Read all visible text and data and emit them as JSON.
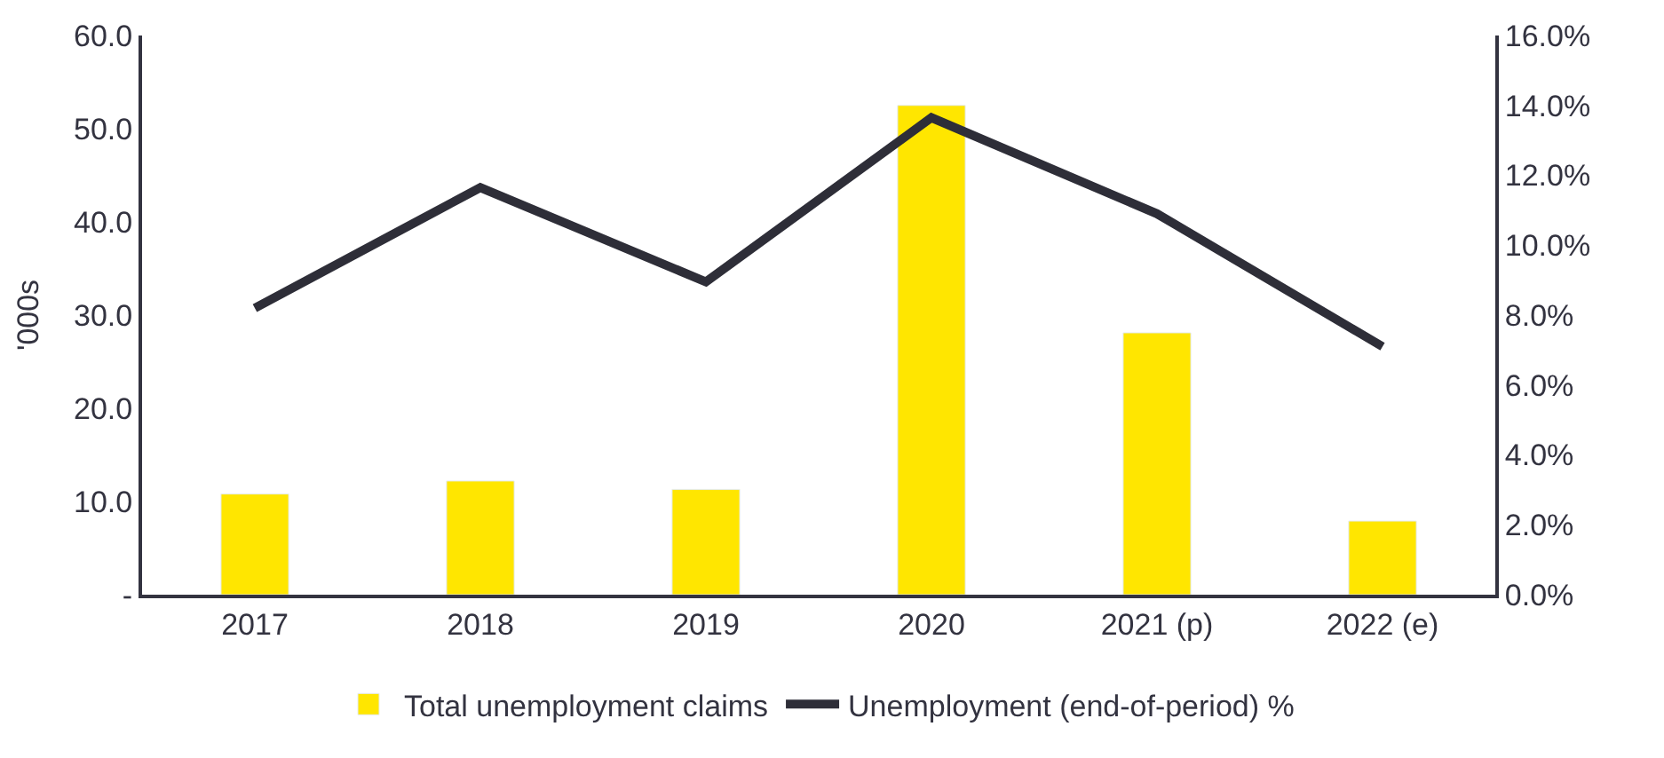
{
  "chart_data": {
    "type": "bar",
    "ylabel": "'000s",
    "categories": [
      "2017",
      "2018",
      "2019",
      "2020",
      "2021 (p)",
      "2022 (e)"
    ],
    "series": [
      {
        "name": "Total unemployment claims",
        "color": "#ffe600",
        "values": [
          10.8,
          12.2,
          11.3,
          52.5,
          28.1,
          7.9
        ]
      },
      {
        "name": "Unemployment (end-of-period) %",
        "color": "#2e2e38",
        "type": "line",
        "axis": "y2",
        "values": [
          8.2,
          11.65,
          8.95,
          13.65,
          10.9,
          7.1
        ]
      }
    ],
    "ylim": [
      0,
      60
    ],
    "yticks": [
      {
        "value": 0,
        "label": "-"
      },
      {
        "value": 10,
        "label": "10.0"
      },
      {
        "value": 20,
        "label": "20.0"
      },
      {
        "value": 30,
        "label": "30.0"
      },
      {
        "value": 40,
        "label": "40.0"
      },
      {
        "value": 50,
        "label": "50.0"
      },
      {
        "value": 60,
        "label": "60.0"
      }
    ],
    "y2lim": [
      0,
      16
    ],
    "y2ticks": [
      {
        "value": 0,
        "label": "0.0%"
      },
      {
        "value": 2,
        "label": "2.0%"
      },
      {
        "value": 4,
        "label": "4.0%"
      },
      {
        "value": 6,
        "label": "6.0%"
      },
      {
        "value": 8,
        "label": "8.0%"
      },
      {
        "value": 10,
        "label": "10.0%"
      },
      {
        "value": 12,
        "label": "12.0%"
      },
      {
        "value": 14,
        "label": "14.0%"
      },
      {
        "value": 16,
        "label": "16.0%"
      }
    ],
    "grid": false,
    "legend": "bottom",
    "marker": "none",
    "line_style": "solid"
  }
}
